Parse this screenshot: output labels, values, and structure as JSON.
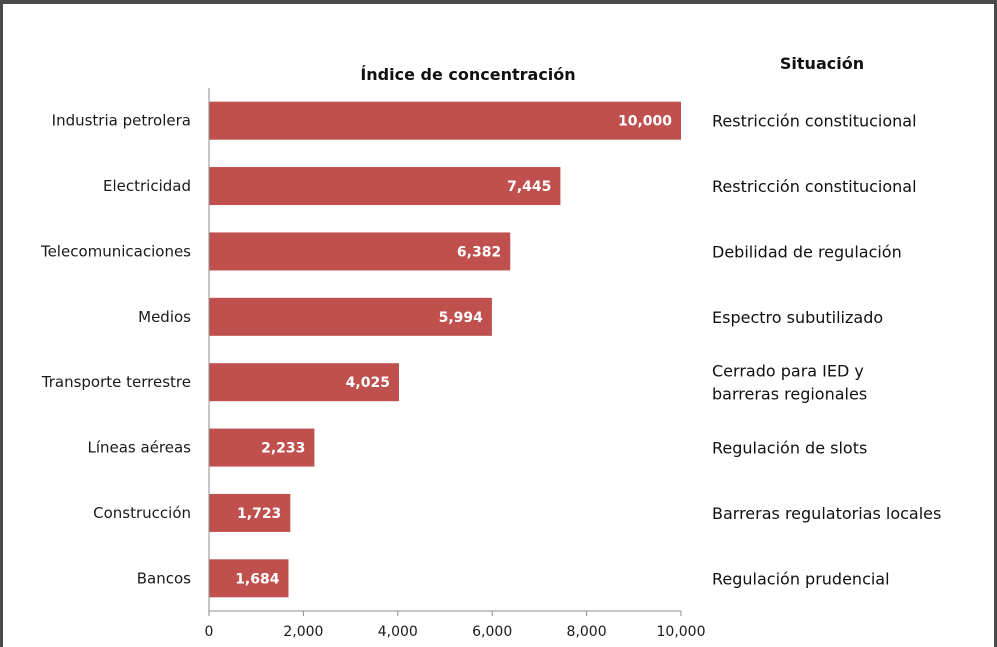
{
  "chart_data": {
    "type": "bar",
    "orientation": "horizontal",
    "title": "Índice de concentración",
    "situation_header": "Situación",
    "categories": [
      "Industria petrolera",
      "Electricidad",
      "Telecomunicaciones",
      "Medios",
      "Transporte terrestre",
      "Líneas aéreas",
      "Construcción",
      "Bancos"
    ],
    "values": [
      10000,
      7445,
      6382,
      5994,
      4025,
      2233,
      1723,
      1684
    ],
    "value_labels": [
      "10,000",
      "7,445",
      "6,382",
      "5,994",
      "4,025",
      "2,233",
      "1,723",
      "1,684"
    ],
    "situations": [
      [
        "Restricción constitucional"
      ],
      [
        "Restricción constitucional"
      ],
      [
        "Debilidad de regulación"
      ],
      [
        "Espectro subutilizado"
      ],
      [
        "Cerrado para IED y",
        "barreras regionales"
      ],
      [
        "Regulación de slots"
      ],
      [
        "Barreras regulatorias locales"
      ],
      [
        "Regulación prudencial"
      ]
    ],
    "xlim": [
      0,
      10000
    ],
    "xticks": [
      0,
      2000,
      4000,
      6000,
      8000,
      10000
    ],
    "xtick_labels": [
      "0",
      "2,000",
      "4,000",
      "6,000",
      "8,000",
      "10,000"
    ],
    "xlabel": "",
    "ylabel": "",
    "grid": false,
    "legend": "none",
    "bar_color": "#c0504d"
  }
}
